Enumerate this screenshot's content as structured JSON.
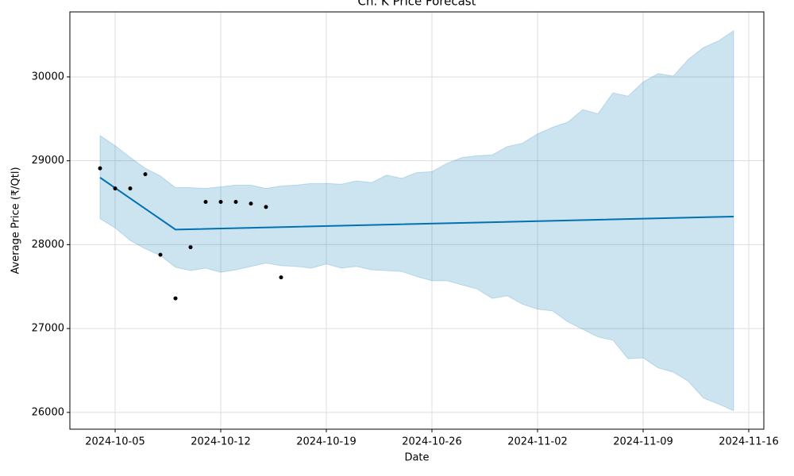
{
  "chart_data": {
    "type": "line",
    "title": "Ch. K Price Forecast",
    "x_label": "Date",
    "y_label": "Average Price (₹/Qtl)",
    "xlim": [
      "2024-10-02",
      "2024-11-17"
    ],
    "xticks": [
      "2024-10-05",
      "2024-10-12",
      "2024-10-19",
      "2024-10-26",
      "2024-11-02",
      "2024-11-09",
      "2024-11-16"
    ],
    "ylim": [
      25800,
      30775
    ],
    "yticks": [
      26000,
      27000,
      28000,
      29000,
      30000
    ],
    "grid": true,
    "observed": {
      "color": "#000000",
      "x": [
        "2024-10-04",
        "2024-10-05",
        "2024-10-06",
        "2024-10-07",
        "2024-10-08",
        "2024-10-09",
        "2024-10-10",
        "2024-10-11",
        "2024-10-12",
        "2024-10-13",
        "2024-10-14",
        "2024-10-15",
        "2024-10-16"
      ],
      "values": [
        28910,
        28670,
        28670,
        28840,
        27880,
        27360,
        27970,
        28510,
        28510,
        28510,
        28490,
        28450,
        27610
      ]
    },
    "forecast": {
      "color": "#0072B2",
      "x": [
        "2024-10-04",
        "2024-10-09",
        "2024-11-15"
      ],
      "values": [
        28800,
        28180,
        28335
      ]
    },
    "band": {
      "color": "#0072B2",
      "x": [
        "2024-10-04",
        "2024-10-05",
        "2024-10-06",
        "2024-10-07",
        "2024-10-08",
        "2024-10-09",
        "2024-10-10",
        "2024-10-11",
        "2024-10-12",
        "2024-10-13",
        "2024-10-14",
        "2024-10-15",
        "2024-10-16",
        "2024-10-17",
        "2024-10-18",
        "2024-10-19",
        "2024-10-20",
        "2024-10-21",
        "2024-10-22",
        "2024-10-23",
        "2024-10-24",
        "2024-10-25",
        "2024-10-26",
        "2024-10-27",
        "2024-10-28",
        "2024-10-29",
        "2024-10-30",
        "2024-10-31",
        "2024-11-01",
        "2024-11-02",
        "2024-11-03",
        "2024-11-04",
        "2024-11-05",
        "2024-11-06",
        "2024-11-07",
        "2024-11-08",
        "2024-11-09",
        "2024-11-10",
        "2024-11-11",
        "2024-11-12",
        "2024-11-13",
        "2024-11-14",
        "2024-11-15"
      ],
      "upper": [
        29300,
        29180,
        29040,
        28910,
        28820,
        28680,
        28680,
        28670,
        28690,
        28710,
        28710,
        28670,
        28700,
        28710,
        28730,
        28730,
        28720,
        28760,
        28740,
        28830,
        28790,
        28860,
        28870,
        28970,
        29040,
        29060,
        29070,
        29170,
        29210,
        29320,
        29400,
        29460,
        29610,
        29560,
        29810,
        29770,
        29940,
        30040,
        30010,
        30210,
        30350,
        30430,
        30550
      ],
      "lower": [
        28310,
        28200,
        28050,
        27950,
        27870,
        27730,
        27690,
        27720,
        27670,
        27700,
        27740,
        27780,
        27750,
        27740,
        27720,
        27770,
        27720,
        27740,
        27700,
        27690,
        27680,
        27620,
        27570,
        27570,
        27520,
        27470,
        27360,
        27390,
        27290,
        27230,
        27210,
        27080,
        26990,
        26900,
        26860,
        26640,
        26650,
        26530,
        26480,
        26370,
        26170,
        26100,
        26020
      ]
    }
  }
}
